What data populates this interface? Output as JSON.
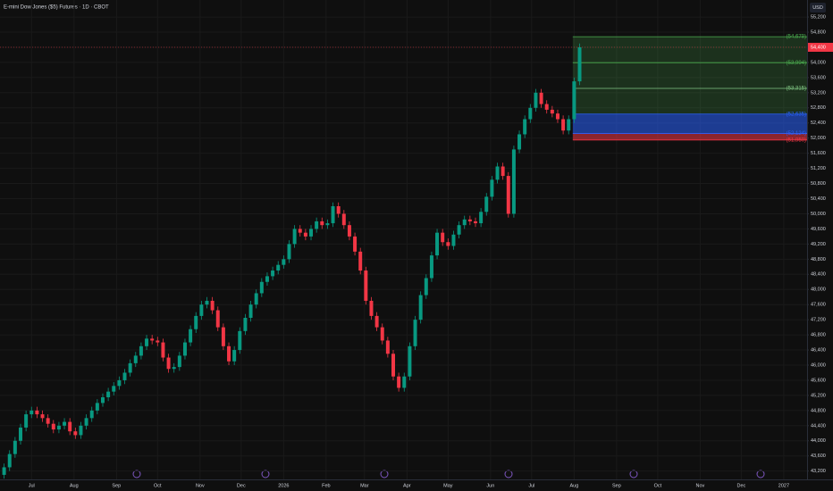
{
  "chart_data": {
    "type": "candlestick",
    "title": "E-mini Dow Jones ($5) Futures · 1D · CBOT",
    "currency": "USD",
    "up_color": "#089981",
    "down_color": "#f23645",
    "grid": true,
    "xlim": [
      -23,
      566
    ],
    "xticks": [
      {
        "value": 0,
        "label": "Jul"
      },
      {
        "value": 31,
        "label": "Aug"
      },
      {
        "value": 62,
        "label": "Sep"
      },
      {
        "value": 92,
        "label": "Oct"
      },
      {
        "value": 123,
        "label": "Nov"
      },
      {
        "value": 153,
        "label": "Dec"
      },
      {
        "value": 184,
        "label": "2026"
      },
      {
        "value": 215,
        "label": "Feb"
      },
      {
        "value": 243,
        "label": "Mar"
      },
      {
        "value": 274,
        "label": "Apr"
      },
      {
        "value": 304,
        "label": "May"
      },
      {
        "value": 335,
        "label": "Jun"
      },
      {
        "value": 365,
        "label": "Jul"
      },
      {
        "value": 396,
        "label": "Aug"
      },
      {
        "value": 427,
        "label": "Sep"
      },
      {
        "value": 457,
        "label": "Oct"
      },
      {
        "value": 488,
        "label": "Nov"
      },
      {
        "value": 518,
        "label": "Dec"
      },
      {
        "value": 549,
        "label": "2027"
      }
    ],
    "ylim": [
      42980,
      55650
    ],
    "yticks": [
      {
        "value": 55200,
        "label": "55,200"
      },
      {
        "value": 54800,
        "label": "54,800"
      },
      {
        "value": 54400,
        "label": "54,400"
      },
      {
        "value": 54000,
        "label": "54,000"
      },
      {
        "value": 53600,
        "label": "53,600"
      },
      {
        "value": 53200,
        "label": "53,200"
      },
      {
        "value": 52800,
        "label": "52,800"
      },
      {
        "value": 52400,
        "label": "52,400"
      },
      {
        "value": 52000,
        "label": "52,000"
      },
      {
        "value": 51600,
        "label": "51,600"
      },
      {
        "value": 51200,
        "label": "51,200"
      },
      {
        "value": 50800,
        "label": "50,800"
      },
      {
        "value": 50400,
        "label": "50,400"
      },
      {
        "value": 50000,
        "label": "50,000"
      },
      {
        "value": 49600,
        "label": "49,600"
      },
      {
        "value": 49200,
        "label": "49,200"
      },
      {
        "value": 48800,
        "label": "48,800"
      },
      {
        "value": 48400,
        "label": "48,400"
      },
      {
        "value": 48000,
        "label": "48,000"
      },
      {
        "value": 47600,
        "label": "47,600"
      },
      {
        "value": 47200,
        "label": "47,200"
      },
      {
        "value": 46800,
        "label": "46,800"
      },
      {
        "value": 46400,
        "label": "46,400"
      },
      {
        "value": 46000,
        "label": "46,000"
      },
      {
        "value": 45600,
        "label": "45,600"
      },
      {
        "value": 45200,
        "label": "45,200"
      },
      {
        "value": 44800,
        "label": "44,800"
      },
      {
        "value": 44400,
        "label": "44,400"
      },
      {
        "value": 44000,
        "label": "44,000"
      },
      {
        "value": 43600,
        "label": "43,600"
      },
      {
        "value": 43200,
        "label": "43,200"
      }
    ],
    "x": [
      -20,
      -16,
      -12,
      -8,
      -4,
      0,
      4,
      8,
      12,
      16,
      20,
      24,
      28,
      32,
      36,
      40,
      44,
      48,
      52,
      56,
      60,
      64,
      68,
      72,
      76,
      80,
      84,
      88,
      92,
      96,
      100,
      104,
      108,
      112,
      116,
      120,
      124,
      128,
      132,
      136,
      140,
      144,
      148,
      152,
      156,
      160,
      164,
      168,
      172,
      176,
      180,
      184,
      188,
      192,
      196,
      200,
      204,
      208,
      212,
      216,
      220,
      224,
      228,
      232,
      236,
      240,
      244,
      248,
      252,
      256,
      260,
      264,
      268,
      272,
      276,
      280,
      284,
      288,
      292,
      296,
      300,
      304,
      308,
      312,
      316,
      320,
      324,
      328,
      332,
      336,
      340,
      344,
      348,
      352,
      356,
      360,
      364,
      368,
      372,
      376,
      380,
      384,
      388,
      392,
      396,
      400
    ],
    "open": [
      43100,
      43300,
      43650,
      44000,
      44350,
      44700,
      44800,
      44700,
      44600,
      44450,
      44300,
      44400,
      44500,
      44250,
      44150,
      44400,
      44600,
      44800,
      45000,
      45150,
      45300,
      45450,
      45600,
      45800,
      46050,
      46250,
      46500,
      46700,
      46650,
      46600,
      46200,
      45900,
      45950,
      46250,
      46600,
      46950,
      47300,
      47600,
      47700,
      47450,
      47000,
      46500,
      46100,
      46400,
      46900,
      47250,
      47600,
      47900,
      48200,
      48350,
      48500,
      48650,
      48800,
      49200,
      49600,
      49500,
      49400,
      49600,
      49800,
      49700,
      49750,
      50200,
      50000,
      49700,
      49400,
      49000,
      48500,
      47700,
      47300,
      47000,
      46650,
      46300,
      45700,
      45400,
      45700,
      46500,
      47200,
      47850,
      48300,
      48900,
      49500,
      49250,
      49150,
      49450,
      49700,
      49850,
      49800,
      49750,
      50050,
      50450,
      50900,
      51250,
      51000,
      50000,
      51700,
      52100,
      52500,
      52800,
      53200,
      52900,
      52750,
      52650,
      52500,
      52200,
      52500,
      53500
    ],
    "high": [
      43400,
      43750,
      44100,
      44450,
      44800,
      44900,
      44900,
      44800,
      44700,
      44550,
      44500,
      44600,
      44600,
      44350,
      44500,
      44700,
      44900,
      45100,
      45250,
      45400,
      45550,
      45700,
      45900,
      46150,
      46350,
      46600,
      46800,
      46800,
      46750,
      46700,
      46300,
      46050,
      46350,
      46700,
      47050,
      47400,
      47700,
      47800,
      47800,
      47550,
      47100,
      46600,
      46500,
      47000,
      47350,
      47700,
      48000,
      48300,
      48450,
      48600,
      48750,
      48900,
      49300,
      49700,
      49700,
      49600,
      49700,
      49900,
      49900,
      49850,
      50300,
      50300,
      50100,
      49800,
      49500,
      49100,
      48600,
      47800,
      47400,
      47100,
      46750,
      46400,
      45800,
      45800,
      46600,
      47300,
      47950,
      48400,
      49000,
      49600,
      49600,
      49350,
      49550,
      49800,
      49950,
      49950,
      49900,
      50150,
      50550,
      51000,
      51350,
      51350,
      51100,
      51800,
      52200,
      52600,
      52900,
      53300,
      53300,
      53000,
      52850,
      52750,
      52600,
      52600,
      53600,
      54500
    ],
    "low": [
      43000,
      43200,
      43550,
      43900,
      44250,
      44600,
      44600,
      44500,
      44350,
      44200,
      44200,
      44300,
      44150,
      44050,
      44050,
      44300,
      44500,
      44700,
      44900,
      45050,
      45200,
      45350,
      45500,
      45700,
      45950,
      46150,
      46400,
      46550,
      46500,
      46100,
      45800,
      45800,
      45850,
      46150,
      46500,
      46850,
      47200,
      47500,
      47350,
      46900,
      46400,
      46000,
      46000,
      46300,
      46800,
      47150,
      47500,
      47800,
      48100,
      48250,
      48400,
      48550,
      48700,
      49100,
      49400,
      49300,
      49300,
      49500,
      49600,
      49600,
      49650,
      49900,
      49600,
      49300,
      48900,
      48400,
      47600,
      47200,
      46900,
      46550,
      46200,
      45600,
      45300,
      45300,
      45600,
      46400,
      47100,
      47750,
      48200,
      48800,
      49150,
      49050,
      49050,
      49350,
      49600,
      49700,
      49650,
      49650,
      49950,
      50350,
      50800,
      50900,
      49900,
      49900,
      51600,
      52000,
      52400,
      52700,
      52800,
      52650,
      52550,
      52400,
      52100,
      52100,
      52400,
      53400
    ],
    "close": [
      43300,
      43650,
      44000,
      44350,
      44700,
      44800,
      44700,
      44600,
      44450,
      44300,
      44400,
      44500,
      44250,
      44150,
      44400,
      44600,
      44800,
      45000,
      45150,
      45300,
      45450,
      45600,
      45800,
      46050,
      46250,
      46500,
      46700,
      46650,
      46600,
      46200,
      45900,
      45950,
      46250,
      46600,
      46950,
      47300,
      47600,
      47700,
      47450,
      47000,
      46500,
      46100,
      46400,
      46900,
      47250,
      47600,
      47900,
      48200,
      48350,
      48500,
      48650,
      48800,
      49200,
      49600,
      49500,
      49400,
      49600,
      49800,
      49700,
      49750,
      50200,
      50000,
      49700,
      49400,
      49000,
      48500,
      47700,
      47300,
      47000,
      46650,
      46300,
      45700,
      45400,
      45700,
      46500,
      47200,
      47850,
      48300,
      48900,
      49500,
      49250,
      49150,
      49450,
      49700,
      49850,
      49800,
      49750,
      50050,
      50450,
      50900,
      51250,
      51000,
      50000,
      51700,
      52100,
      52500,
      52800,
      53200,
      52900,
      52750,
      52650,
      52500,
      52200,
      52500,
      53500,
      54400
    ],
    "last_price": {
      "value": 54400,
      "label": "54,400"
    },
    "levels_start": 395,
    "levels": [
      {
        "value": 54679,
        "label": "(54,679)",
        "color": "#4caf50"
      },
      {
        "value": 53994,
        "label": "(53,994)",
        "color": "#4caf50"
      },
      {
        "value": 53315,
        "label": "(53,315)",
        "color": "#81c784"
      },
      {
        "value": 52635,
        "label": "(52,635)",
        "color": "#2962ff"
      },
      {
        "value": 52124,
        "label": "(52,124)",
        "color": "#2962ff"
      },
      {
        "value": 51950,
        "label": "(51,950)",
        "color": "#f23645"
      }
    ],
    "zone_colors": [
      "rgba(76,175,80,0.22)",
      "rgba(76,175,80,0.22)",
      "rgba(76,175,80,0.22)",
      "rgba(41,98,255,0.55)",
      "rgba(242,54,69,0.55)"
    ]
  }
}
